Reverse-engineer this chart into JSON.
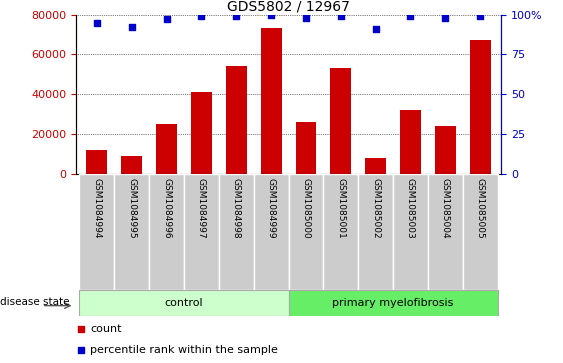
{
  "title": "GDS5802 / 12967",
  "samples": [
    "GSM1084994",
    "GSM1084995",
    "GSM1084996",
    "GSM1084997",
    "GSM1084998",
    "GSM1084999",
    "GSM1085000",
    "GSM1085001",
    "GSM1085002",
    "GSM1085003",
    "GSM1085004",
    "GSM1085005"
  ],
  "counts": [
    12000,
    9000,
    25000,
    41000,
    54000,
    73000,
    26000,
    53000,
    8000,
    32000,
    24000,
    67000
  ],
  "percentiles": [
    95,
    92,
    97,
    99,
    99,
    100,
    98,
    99,
    91,
    99,
    98,
    99
  ],
  "bar_color": "#cc0000",
  "dot_color": "#0000cc",
  "ylim_left": [
    0,
    80000
  ],
  "ylim_right": [
    0,
    100
  ],
  "yticks_left": [
    0,
    20000,
    40000,
    60000,
    80000
  ],
  "yticks_right": [
    0,
    25,
    50,
    75,
    100
  ],
  "control_indices": [
    0,
    1,
    2,
    3,
    4,
    5
  ],
  "pmf_indices": [
    6,
    7,
    8,
    9,
    10,
    11
  ],
  "control_label": "control",
  "pmf_label": "primary myelofibrosis",
  "disease_state_label": "disease state",
  "legend_count": "count",
  "legend_percentile": "percentile rank within the sample",
  "control_color": "#ccffcc",
  "pmf_color": "#66ee66",
  "xticklabel_bg": "#cccccc",
  "left_axis_color": "#cc0000",
  "right_axis_color": "#0000cc"
}
